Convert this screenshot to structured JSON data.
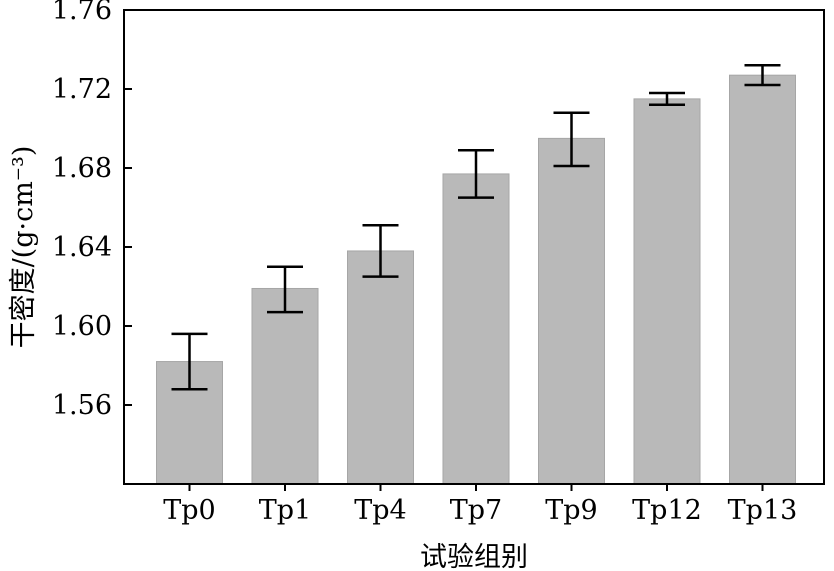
{
  "chart_data": {
    "type": "bar",
    "xlabel": "试验组别",
    "ylabel": "干密度/(g·cm⁻³)",
    "ylim": [
      1.52,
      1.76
    ],
    "yticks": [
      1.56,
      1.6,
      1.64,
      1.68,
      1.72,
      1.76
    ],
    "ytick_labels": [
      "1.56",
      "1.60",
      "1.64",
      "1.68",
      "1.72",
      "1.76"
    ],
    "categories": [
      "Tp0",
      "Tp1",
      "Tp4",
      "Tp7",
      "Tp9",
      "Tp12",
      "Tp13"
    ],
    "values": [
      1.582,
      1.619,
      1.638,
      1.677,
      1.695,
      1.715,
      1.727
    ],
    "error_low": [
      1.568,
      1.607,
      1.625,
      1.665,
      1.681,
      1.712,
      1.722
    ],
    "error_high": [
      1.596,
      1.63,
      1.651,
      1.689,
      1.708,
      1.718,
      1.732
    ],
    "bar_color": "#b9b9b9",
    "grid": false,
    "legend": "none"
  }
}
